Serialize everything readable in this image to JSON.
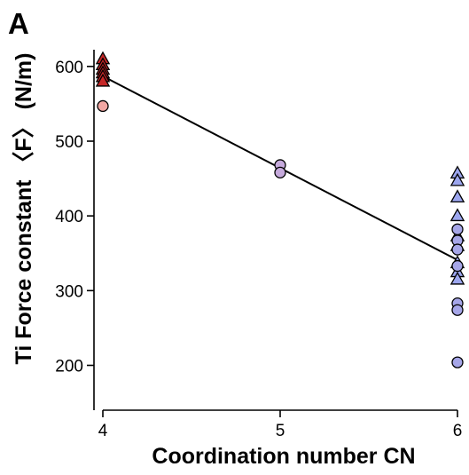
{
  "panel_label": "A",
  "chart_data": {
    "type": "scatter",
    "title": "",
    "xlabel": "Coordination number CN",
    "ylabel": "Ti Force constant 〈F〉 (N/m)",
    "xlim": [
      3.95,
      6.05
    ],
    "ylim": [
      140,
      620
    ],
    "xticks": [
      4,
      5,
      6
    ],
    "xtick_labels": [
      "4",
      "5",
      "6"
    ],
    "yticks": [
      200,
      300,
      400,
      500,
      600
    ],
    "ytick_labels": [
      "200",
      "300",
      "400",
      "500",
      "600"
    ],
    "grid": false,
    "legend": "none",
    "colors": {
      "cn4_triangle": "#c62828",
      "cn4_circle": "#f2a7a3",
      "cn5_circle": "#c6aadc",
      "cn6_triangle": "#9ca6ee",
      "cn6_circle": "#a6a6e8",
      "marker_edge": "#000000",
      "fit_line": "#000000",
      "axis": "#000000"
    },
    "series": [
      {
        "marker": "triangle",
        "color_key": "cn4_triangle",
        "points": [
          {
            "x": 4,
            "y": 610
          },
          {
            "x": 4,
            "y": 602
          },
          {
            "x": 4,
            "y": 596
          },
          {
            "x": 4,
            "y": 591
          },
          {
            "x": 4,
            "y": 586
          },
          {
            "x": 4,
            "y": 580
          }
        ]
      },
      {
        "marker": "circle",
        "color_key": "cn4_circle",
        "points": [
          {
            "x": 4,
            "y": 547
          }
        ]
      },
      {
        "marker": "circle",
        "color_key": "cn5_circle",
        "points": [
          {
            "x": 5,
            "y": 468
          },
          {
            "x": 5,
            "y": 458
          }
        ]
      },
      {
        "marker": "triangle",
        "color_key": "cn6_triangle",
        "points": [
          {
            "x": 6,
            "y": 457
          },
          {
            "x": 6,
            "y": 447
          },
          {
            "x": 6,
            "y": 425
          },
          {
            "x": 6,
            "y": 400
          },
          {
            "x": 6,
            "y": 373
          },
          {
            "x": 6,
            "y": 360
          },
          {
            "x": 6,
            "y": 337
          },
          {
            "x": 6,
            "y": 325
          },
          {
            "x": 6,
            "y": 315
          }
        ]
      },
      {
        "marker": "circle",
        "color_key": "cn6_circle",
        "points": [
          {
            "x": 6,
            "y": 382
          },
          {
            "x": 6,
            "y": 367
          },
          {
            "x": 6,
            "y": 355
          },
          {
            "x": 6,
            "y": 333
          },
          {
            "x": 6,
            "y": 283
          },
          {
            "x": 6,
            "y": 274
          },
          {
            "x": 6,
            "y": 204
          }
        ]
      }
    ],
    "fit_line": {
      "points": [
        {
          "x": 4,
          "y": 587
        },
        {
          "x": 6,
          "y": 341
        }
      ]
    }
  }
}
